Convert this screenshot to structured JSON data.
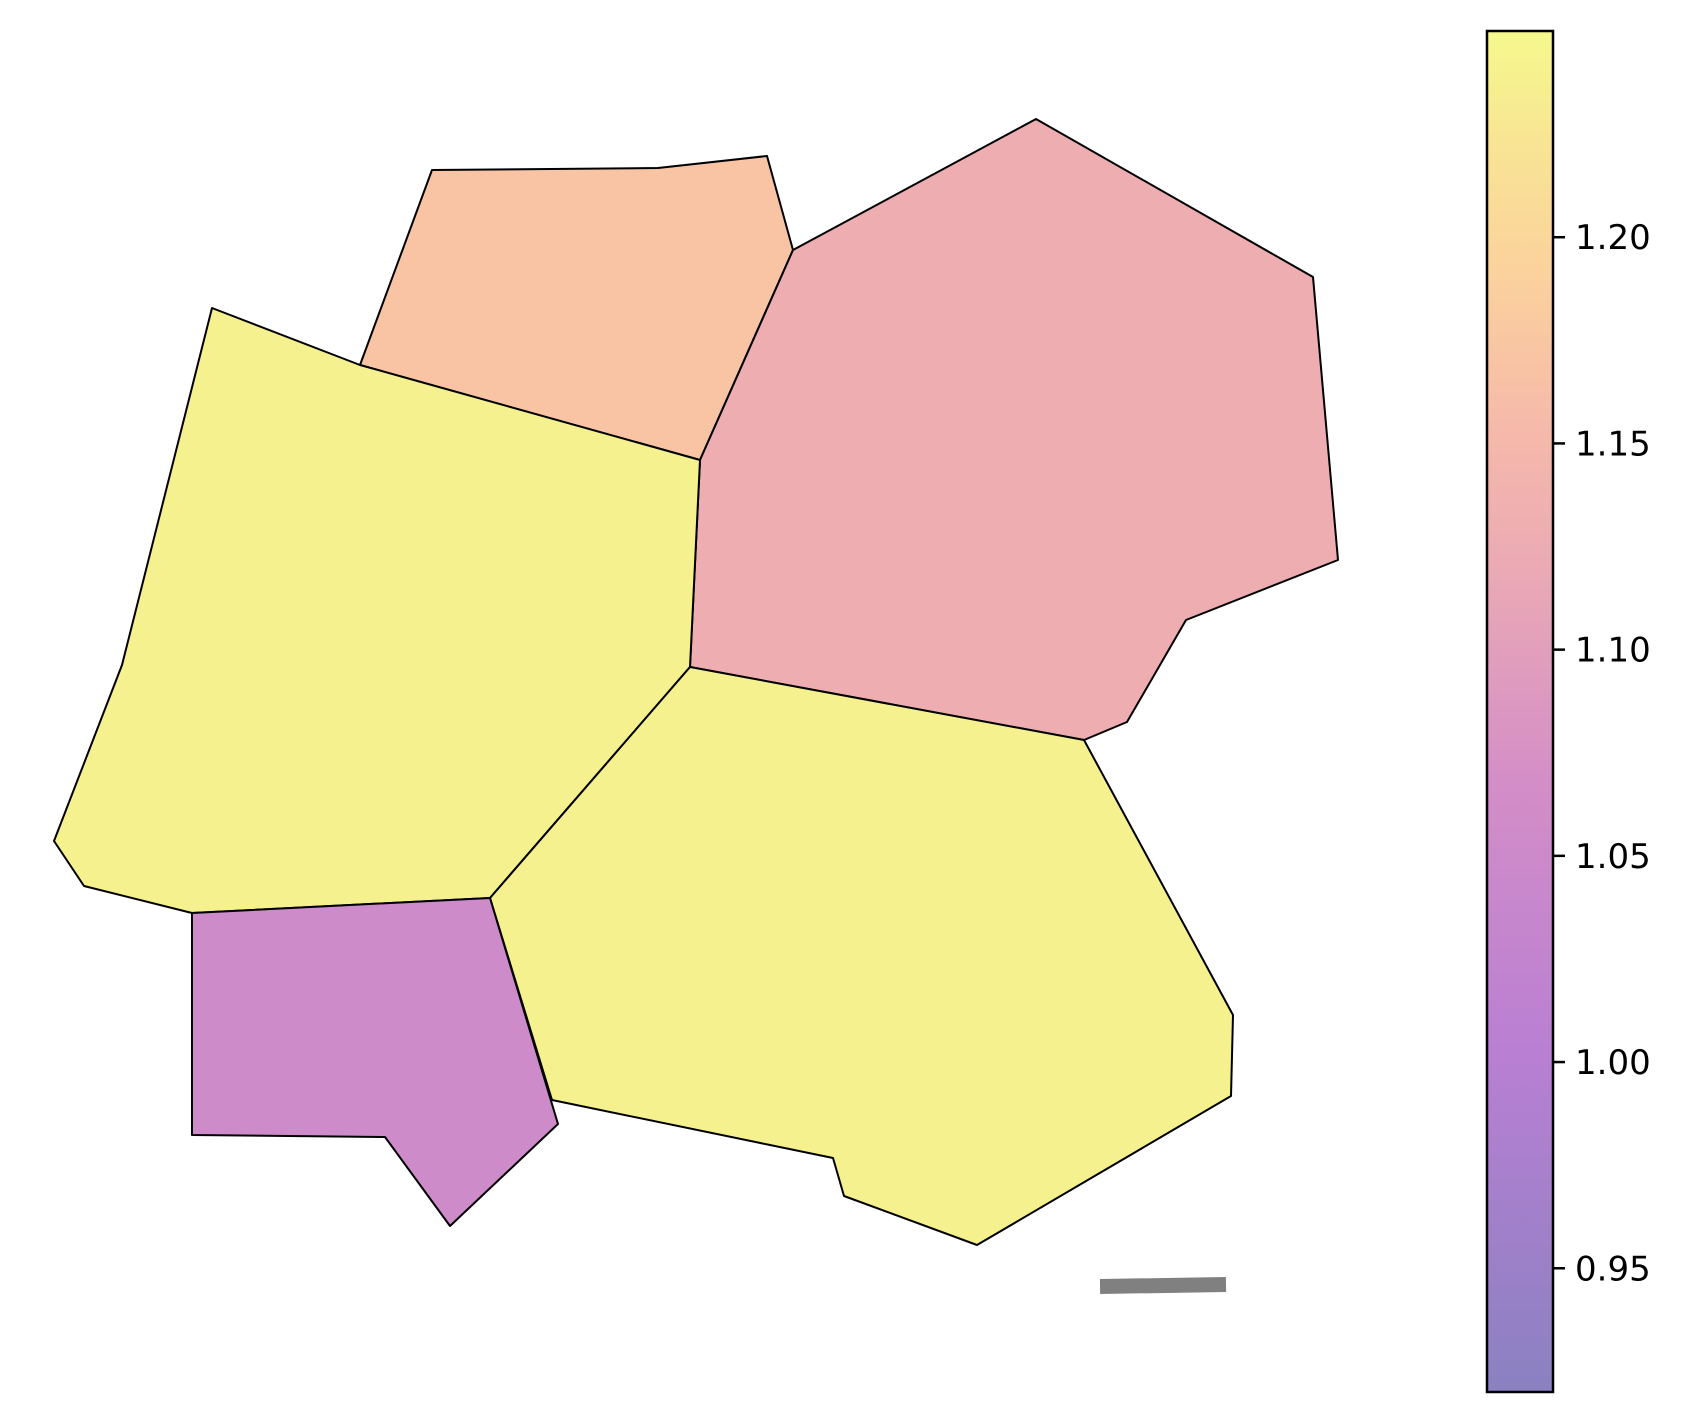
{
  "map": {
    "type": "choropleth",
    "regions": [
      {
        "id": "region-north",
        "value": 1.17
      },
      {
        "id": "region-northeast",
        "value": 1.13
      },
      {
        "id": "region-west",
        "value": 1.24
      },
      {
        "id": "region-southeast",
        "value": 1.24
      },
      {
        "id": "region-southwest",
        "value": 1.055
      }
    ],
    "scale_bar": {
      "label": ""
    }
  },
  "colorbar": {
    "min": 0.92,
    "max": 1.25,
    "ticks": [
      "0.95",
      "1.00",
      "1.05",
      "1.10",
      "1.15",
      "1.20"
    ],
    "tick_values": [
      0.95,
      1.0,
      1.05,
      1.1,
      1.15,
      1.2
    ],
    "colormap": "plasma-like (alpha 0.5)",
    "colors": {
      "low": "#8a81c1",
      "mid_low": "#b97fd3",
      "mid": "#dd9cc6",
      "mid_high": "#f5b8ab",
      "high_mid": "#fbd19d",
      "high": "#f5f98c"
    }
  },
  "colors": {
    "edge": "#000000",
    "scale_bar": "#808080"
  }
}
